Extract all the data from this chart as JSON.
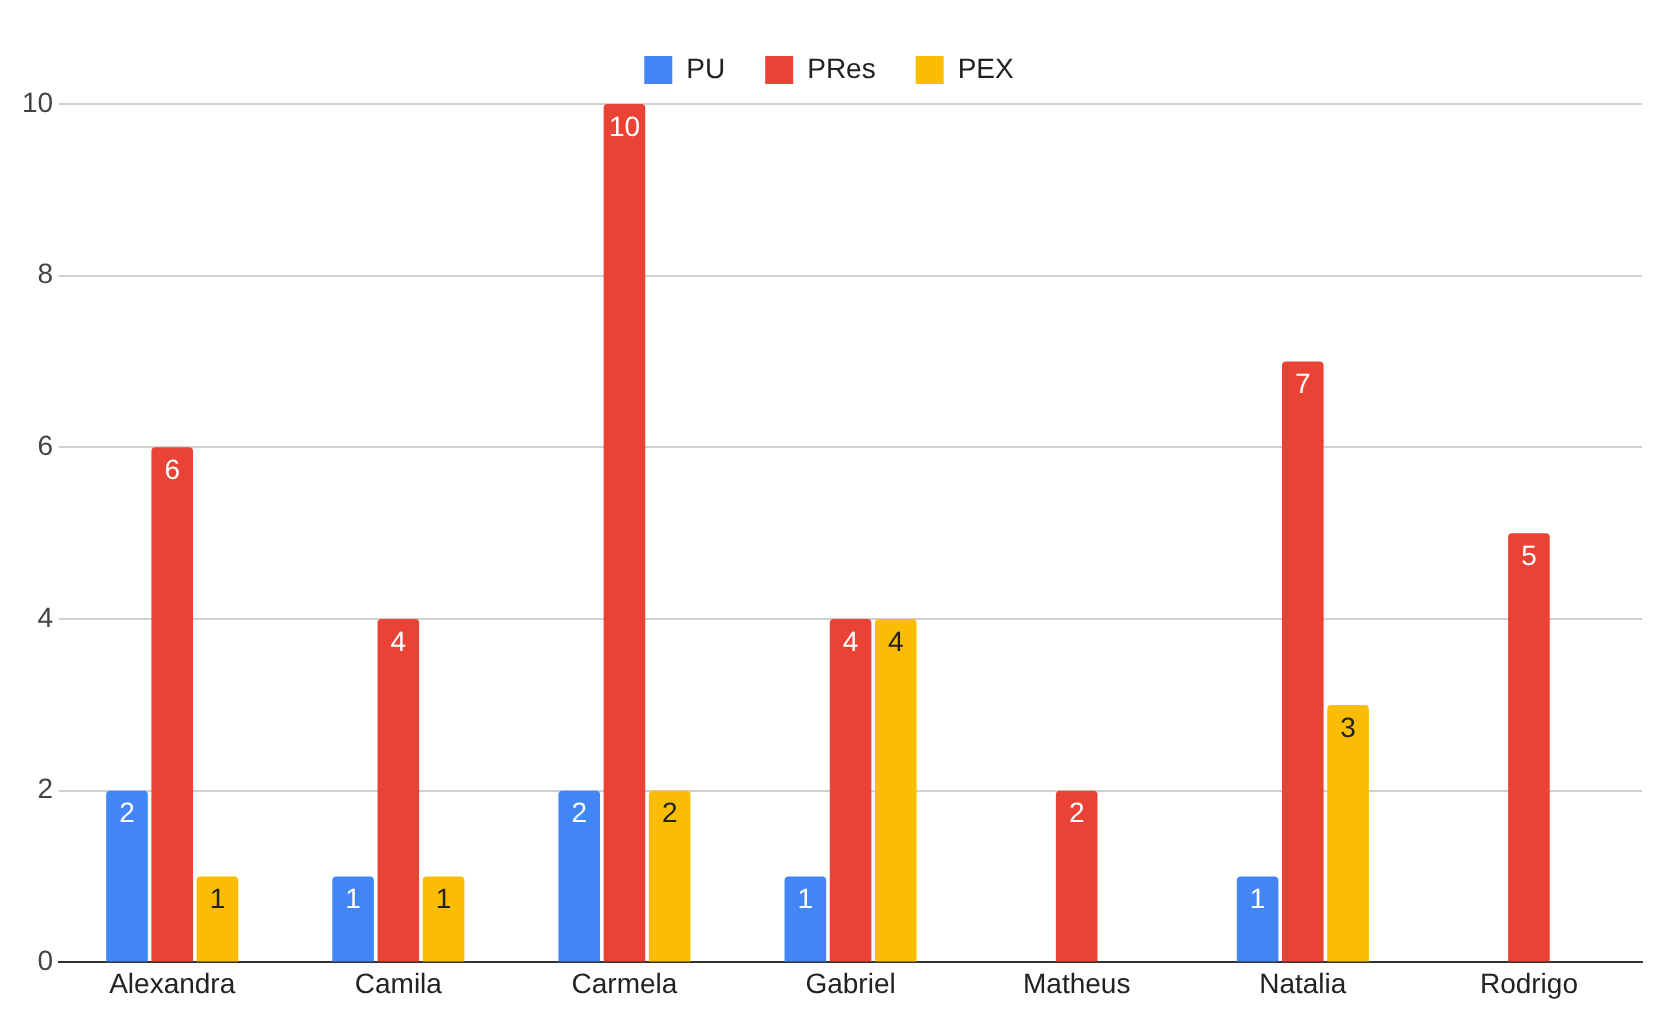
{
  "chart_data": {
    "type": "bar",
    "categories": [
      "Alexandra",
      "Camila",
      "Carmela",
      "Gabriel",
      "Matheus",
      "Natalia",
      "Rodrigo"
    ],
    "series": [
      {
        "name": "PU",
        "color": "#4285f4",
        "values": [
          2,
          1,
          2,
          1,
          null,
          1,
          null
        ]
      },
      {
        "name": "PRes",
        "color": "#ea4335",
        "values": [
          6,
          4,
          10,
          4,
          2,
          7,
          5
        ]
      },
      {
        "name": "PEX",
        "color": "#fbbc04",
        "values": [
          1,
          1,
          2,
          4,
          null,
          3,
          null
        ]
      }
    ],
    "ylim": [
      0,
      10
    ],
    "yticks": [
      0,
      2,
      4,
      6,
      8,
      10
    ],
    "grid": "y",
    "legend": "top",
    "data_labels": true
  }
}
